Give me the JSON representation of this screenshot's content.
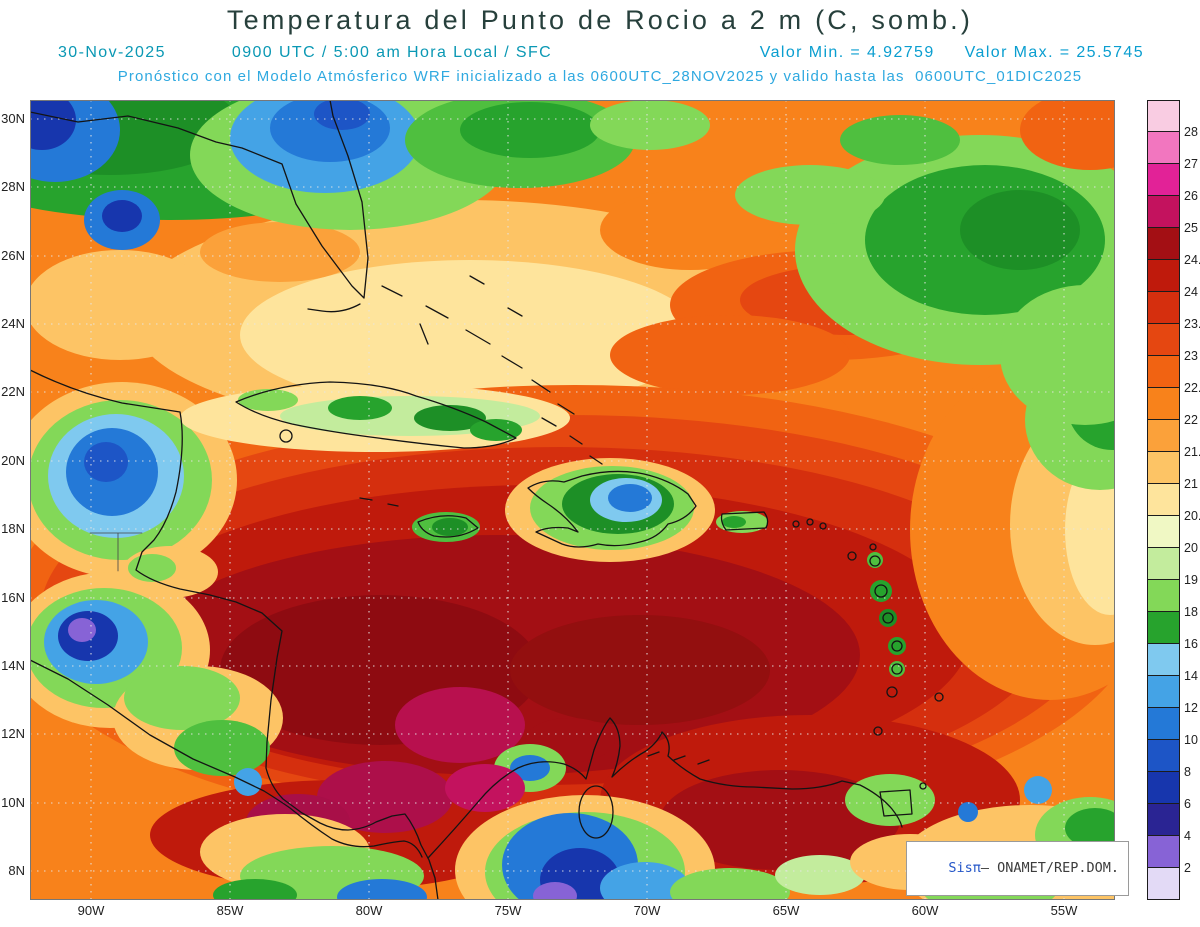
{
  "theme": {
    "title_color": "#27403c",
    "subtitle_color": "#0a98b4",
    "values_color": "#0a9ed0",
    "info_color": "#2fa9e0",
    "axis_color": "#222222",
    "brand_color": "#2456c8",
    "brand_text_color": "#3c3c3c"
  },
  "header": {
    "title": "Temperatura del Punto de Rocio a 2 m (C, somb.)",
    "line2_date": "30-Nov-2025",
    "line2_time": "0900 UTC / 5:00 am Hora Local / SFC",
    "valor_min": "Valor Min. = 4.92759",
    "valor_max": "Valor Max. = 25.5745",
    "line3": "Pronóstico con el Modelo Atmósferico WRF inicializado a las 0600UTC_28NOV2025 y valido hasta las  0600UTC_01DIC2025"
  },
  "map": {
    "lat_labels": [
      "30N",
      "28N",
      "26N",
      "24N",
      "22N",
      "20N",
      "18N",
      "16N",
      "14N",
      "12N",
      "10N",
      "8N"
    ],
    "lon_labels": [
      "90W",
      "85W",
      "80W",
      "75W",
      "70W",
      "65W",
      "60W",
      "55W"
    ]
  },
  "colorbar": {
    "cell_colors": [
      "#f9cce2",
      "#f276bf",
      "#e22297",
      "#c3125e",
      "#a30f14",
      "#bf1a0c",
      "#d52f0e",
      "#e54711",
      "#f16312",
      "#f8821b",
      "#fba13a",
      "#fdc465",
      "#fee49c",
      "#f0f8c4",
      "#c3ec9d",
      "#83d858",
      "#27a32d",
      "#7fc9ef",
      "#44a3e6",
      "#2479d7",
      "#1d55c6",
      "#1736ad",
      "#2a2493",
      "#8763d6",
      "#e3daf6"
    ],
    "tick_labels": [
      "28",
      "27",
      "26",
      "25",
      "24.5",
      "24",
      "23.5",
      "23",
      "22.5",
      "22",
      "21.5",
      "21",
      "20.5",
      "20",
      "19",
      "18",
      "16",
      "14",
      "12",
      "10",
      "8",
      "6",
      "4",
      "2"
    ]
  },
  "watermark": {
    "brand": "Sisπ",
    "suffix": "— ONAMET/REP.DOM."
  }
}
